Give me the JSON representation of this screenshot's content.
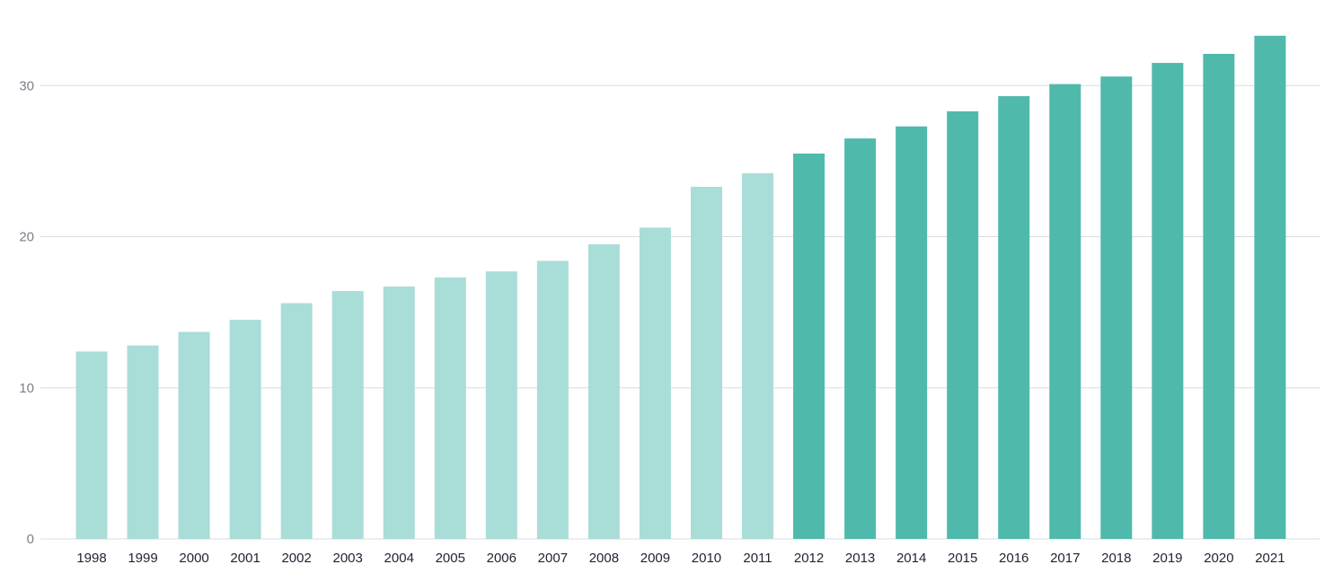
{
  "chart_data": {
    "type": "bar",
    "title": "",
    "xlabel": "",
    "ylabel": "",
    "categories": [
      "1998",
      "1999",
      "2000",
      "2001",
      "2002",
      "2003",
      "2004",
      "2005",
      "2006",
      "2007",
      "2008",
      "2009",
      "2010",
      "2011",
      "2012",
      "2013",
      "2014",
      "2015",
      "2016",
      "2017",
      "2018",
      "2019",
      "2020",
      "2021"
    ],
    "values": [
      12.4,
      12.8,
      13.7,
      14.5,
      15.6,
      16.4,
      16.7,
      17.3,
      17.7,
      18.4,
      19.5,
      20.6,
      23.3,
      24.2,
      25.5,
      26.5,
      27.3,
      28.3,
      29.3,
      30.1,
      30.6,
      31.5,
      32.1,
      33.3
    ],
    "ylim": [
      0,
      34
    ],
    "yticks": [
      0,
      10,
      20,
      30
    ],
    "grid": true,
    "colors": {
      "historical": "#a9ddd7",
      "highlighted": "#4fb9ac",
      "gridline": "#d9dbe0"
    },
    "highlight_from": "2012"
  }
}
